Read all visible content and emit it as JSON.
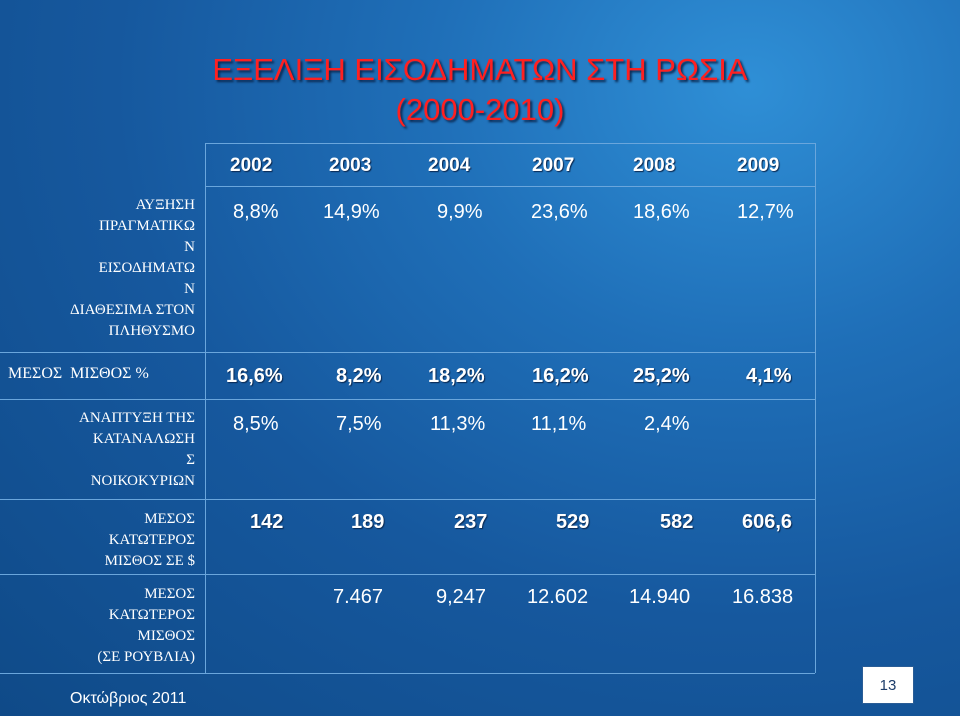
{
  "slide": {
    "title_line1": "ΕΞΕΛΙΞΗ ΕΙΣΟΔΗΜΑΤΩΝ ΣΤΗ ΡΩΣΙΑ",
    "title_line2": "(2000-2010)",
    "footer_date": "Οκτώβριος 2011",
    "page_number": "13"
  },
  "table": {
    "years": [
      "2002",
      "2003",
      "2004",
      "2007",
      "2008",
      "2009"
    ],
    "rows": [
      {
        "label_lines": [
          "ΑΥΞΗΣΗ",
          "ΠΡΑΓΜΑΤΙΚΩ",
          "Ν",
          "ΕΙΣΟΔΗΜΑΤΩ",
          "Ν",
          "ΔΙΑΘΕΣΙΜΑ ΣΤΟΝ",
          "ΠΛΗΘΥΣΜΟ"
        ],
        "values": [
          "8,8%",
          "14,9%",
          "9,9%",
          "23,6%",
          "18,6%",
          "12,7%"
        ]
      },
      {
        "label_lines": [
          "ΜΕΣΟΣ  ΜΙΣΘΟΣ %"
        ],
        "values": [
          "16,6%",
          "8,2%",
          "18,2%",
          "16,2%",
          "25,2%",
          "4,1%"
        ]
      },
      {
        "label_lines": [
          "ΑΝΑΠΤΥΞΗ ΤΗΣ",
          "ΚΑΤΑΝΑΛΩΣΗ",
          "Σ",
          "ΝΟΙΚΟΚΥΡΙΩΝ"
        ],
        "values": [
          "8,5%",
          "7,5%",
          "11,3%",
          "11,1%",
          "2,4%",
          ""
        ]
      },
      {
        "label_lines": [
          "ΜΕΣΟΣ",
          "ΚΑΤΩΤΕΡΟΣ",
          "ΜΙΣΘΟΣ ΣΕ $"
        ],
        "values": [
          "142",
          "189",
          "237",
          "529",
          "582",
          "606,6"
        ]
      },
      {
        "label_lines": [
          "ΜΕΣΟΣ",
          "ΚΑΤΩΤΕΡΟΣ",
          "ΜΙΣΘΟΣ",
          "(ΣΕ ΡΟΥΒΛΙΑ)"
        ],
        "values": [
          "",
          "7.467",
          "9,247",
          "12.602",
          "14.940",
          "16.838"
        ]
      }
    ]
  }
}
